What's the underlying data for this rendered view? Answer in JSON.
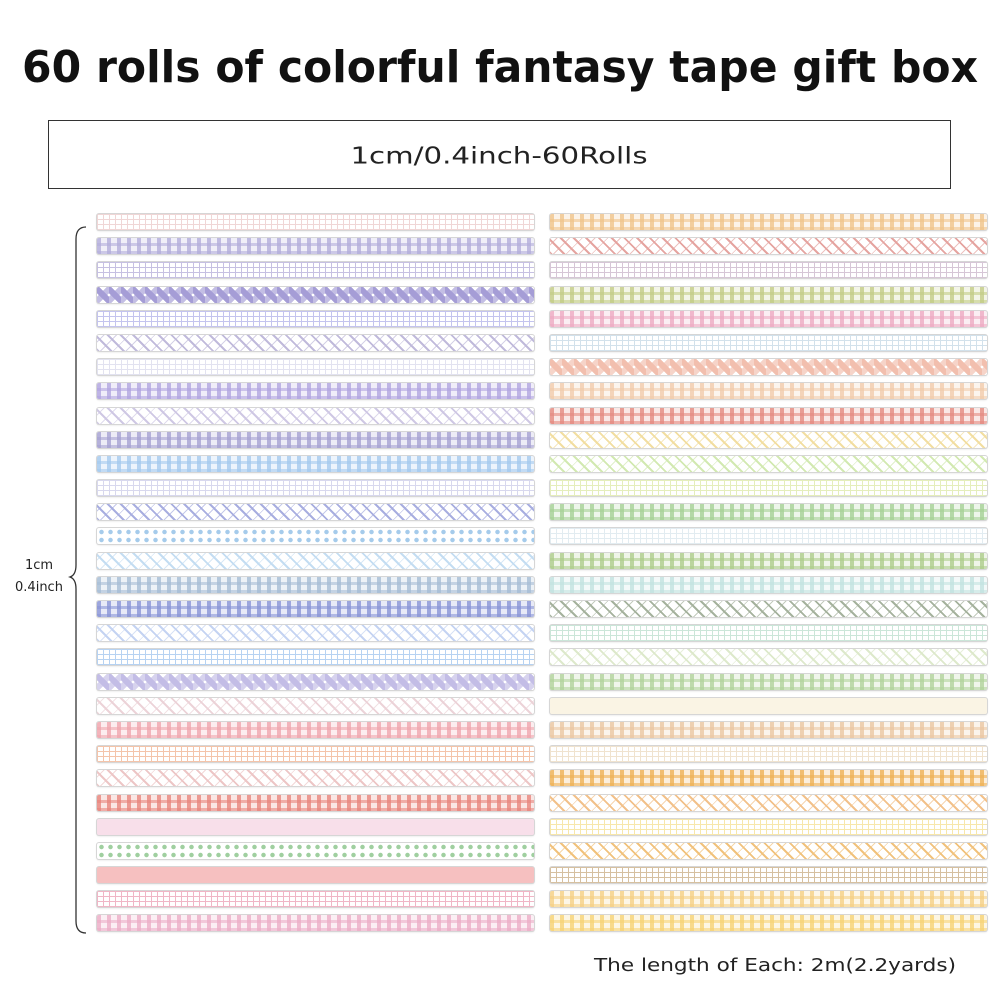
{
  "title": "60 rolls of colorful fantasy tape gift box",
  "size_label": "1cm/0.4inch-60Rolls",
  "width_label": {
    "cm": "1cm",
    "inch": "0.4inch"
  },
  "footer": "The length of Each: 2m(2.2yards)",
  "tapes_left": [
    {
      "color": "#f0d6d6",
      "pattern": "grid"
    },
    {
      "color": "#b4aedb",
      "pattern": "plaid"
    },
    {
      "color": "#c6c0e2",
      "pattern": "grid"
    },
    {
      "color": "#a59dd6",
      "pattern": "diamond"
    },
    {
      "color": "#c4c4ee",
      "pattern": "grid"
    },
    {
      "color": "#c0badb",
      "pattern": "diag"
    },
    {
      "color": "#e2e2f0",
      "pattern": "grid"
    },
    {
      "color": "#b2a5e0",
      "pattern": "plaid"
    },
    {
      "color": "#cfc8e4",
      "pattern": "diag"
    },
    {
      "color": "#a7a2d2",
      "pattern": "plaid"
    },
    {
      "color": "#a5caee",
      "pattern": "plaid"
    },
    {
      "color": "#d8d8ee",
      "pattern": "grid"
    },
    {
      "color": "#a8aee0",
      "pattern": "diag"
    },
    {
      "color": "#a5cbeb",
      "pattern": "dots"
    },
    {
      "color": "#c4ddf2",
      "pattern": "diag"
    },
    {
      "color": "#a7bdd5",
      "pattern": "plaid"
    },
    {
      "color": "#8a95d6",
      "pattern": "plaid"
    },
    {
      "color": "#c4d3f2",
      "pattern": "diag"
    },
    {
      "color": "#b6d2f2",
      "pattern": "grid"
    },
    {
      "color": "#c3bde6",
      "pattern": "diamond"
    },
    {
      "color": "#ecd3d8",
      "pattern": "diag"
    },
    {
      "color": "#f0a6ae",
      "pattern": "plaid"
    },
    {
      "color": "#f4c4aa",
      "pattern": "grid"
    },
    {
      "color": "#edc6c6",
      "pattern": "diag"
    },
    {
      "color": "#e8857d",
      "pattern": "plaid"
    },
    {
      "color": "#f8dfea",
      "pattern": "solid"
    },
    {
      "color": "#9fcf9f",
      "pattern": "dots"
    },
    {
      "color": "#f6c0c0",
      "pattern": "solid"
    },
    {
      "color": "#f0b6c6",
      "pattern": "grid"
    },
    {
      "color": "#ecaec7",
      "pattern": "plaid"
    }
  ],
  "tapes_right": [
    {
      "color": "#f0c48b",
      "pattern": "plaid"
    },
    {
      "color": "#e5a4a0",
      "pattern": "diag"
    },
    {
      "color": "#d6c6d6",
      "pattern": "grid"
    },
    {
      "color": "#c3cc86",
      "pattern": "plaid"
    },
    {
      "color": "#edaac2",
      "pattern": "plaid"
    },
    {
      "color": "#d2e1eb",
      "pattern": "grid"
    },
    {
      "color": "#f2bfae",
      "pattern": "diamond"
    },
    {
      "color": "#f2ccac",
      "pattern": "plaid"
    },
    {
      "color": "#e48a80",
      "pattern": "plaid"
    },
    {
      "color": "#f2dea1",
      "pattern": "diag"
    },
    {
      "color": "#d2e9b1",
      "pattern": "diag"
    },
    {
      "color": "#e5eebc",
      "pattern": "grid"
    },
    {
      "color": "#a6d196",
      "pattern": "plaid"
    },
    {
      "color": "#e2ecf1",
      "pattern": "grid"
    },
    {
      "color": "#aecd8c",
      "pattern": "plaid"
    },
    {
      "color": "#c2e2e0",
      "pattern": "plaid"
    },
    {
      "color": "#a5b29d",
      "pattern": "diag"
    },
    {
      "color": "#cbe6d9",
      "pattern": "grid"
    },
    {
      "color": "#dde9cb",
      "pattern": "diag"
    },
    {
      "color": "#b2d39c",
      "pattern": "plaid"
    },
    {
      "color": "#faf4e4",
      "pattern": "solid"
    },
    {
      "color": "#ebc7a2",
      "pattern": "plaid"
    },
    {
      "color": "#f0e3cf",
      "pattern": "grid"
    },
    {
      "color": "#eeb156",
      "pattern": "plaid"
    },
    {
      "color": "#f2c18a",
      "pattern": "diag"
    },
    {
      "color": "#f7e7ab",
      "pattern": "grid"
    },
    {
      "color": "#f1c27c",
      "pattern": "diag"
    },
    {
      "color": "#d6c0a0",
      "pattern": "grid"
    },
    {
      "color": "#f5d085",
      "pattern": "plaid"
    },
    {
      "color": "#f7d375",
      "pattern": "plaid"
    }
  ]
}
